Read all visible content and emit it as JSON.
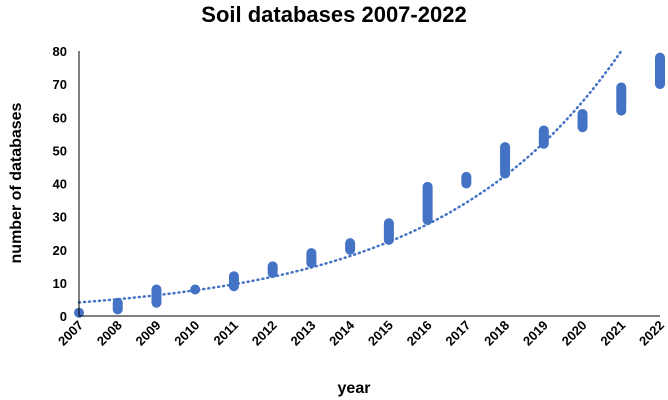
{
  "chart_data": {
    "type": "scatter",
    "title": "Soil databases 2007-2022",
    "xlabel": "year",
    "ylabel": "number of databases",
    "ylim": [
      0,
      80
    ],
    "yticks": [
      0,
      10,
      20,
      30,
      40,
      50,
      60,
      70,
      80
    ],
    "xticks": [
      "2007",
      "2008",
      "2009",
      "2010",
      "2011",
      "2012",
      "2013",
      "2014",
      "2015",
      "2016",
      "2017",
      "2018",
      "2019",
      "2020",
      "2021",
      "2022"
    ],
    "grid": false,
    "legend": "none",
    "marker_color": "#4472C4",
    "trendline": {
      "type": "exponential",
      "style": "dotted",
      "color": "#4472C4"
    },
    "series": [
      {
        "points": [
          {
            "x": 2007,
            "y_min": 1,
            "y_max": 1
          },
          {
            "x": 2008,
            "y_min": 2,
            "y_max": 4
          },
          {
            "x": 2009,
            "y_min": 4,
            "y_max": 8
          },
          {
            "x": 2010,
            "y_min": 8,
            "y_max": 8
          },
          {
            "x": 2011,
            "y_min": 9,
            "y_max": 12
          },
          {
            "x": 2012,
            "y_min": 13,
            "y_max": 15
          },
          {
            "x": 2013,
            "y_min": 16,
            "y_max": 19
          },
          {
            "x": 2014,
            "y_min": 20,
            "y_max": 22
          },
          {
            "x": 2015,
            "y_min": 23,
            "y_max": 28
          },
          {
            "x": 2016,
            "y_min": 29,
            "y_max": 39
          },
          {
            "x": 2017,
            "y_min": 40,
            "y_max": 42
          },
          {
            "x": 2018,
            "y_min": 43,
            "y_max": 51
          },
          {
            "x": 2019,
            "y_min": 52,
            "y_max": 56
          },
          {
            "x": 2020,
            "y_min": 57,
            "y_max": 61
          },
          {
            "x": 2021,
            "y_min": 62,
            "y_max": 69
          },
          {
            "x": 2022,
            "y_min": 70,
            "y_max": 78
          }
        ]
      }
    ]
  }
}
